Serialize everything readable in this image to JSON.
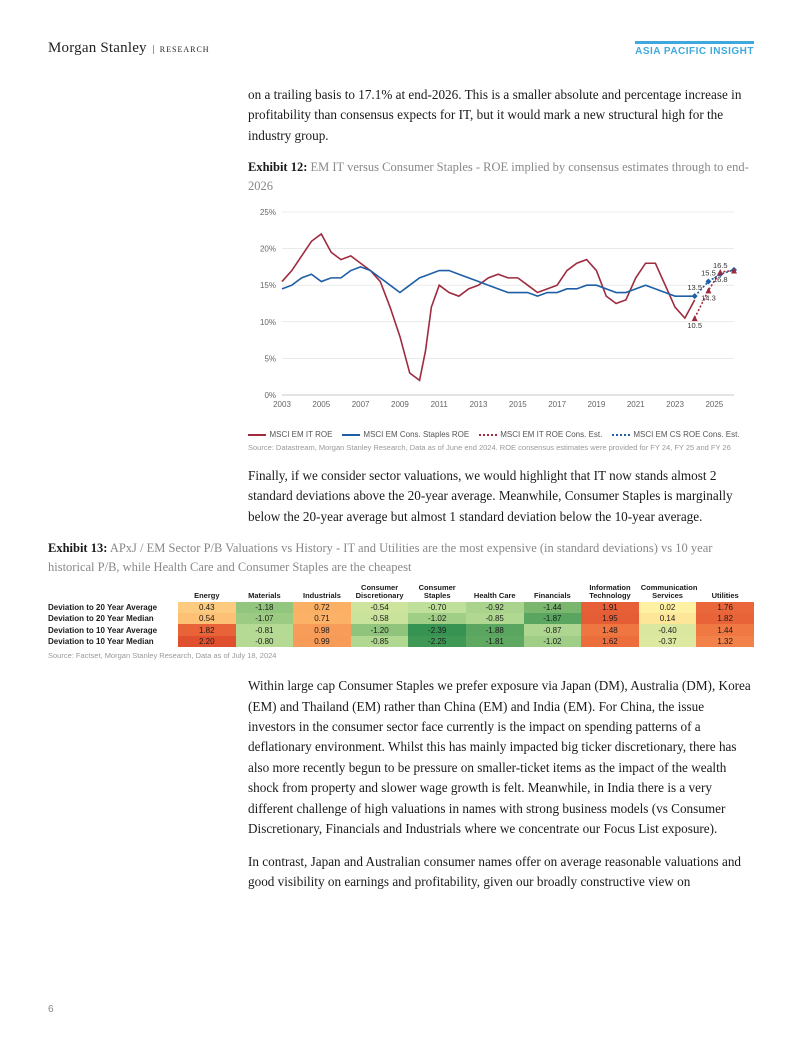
{
  "header": {
    "brand": "Morgan Stanley",
    "research": "RESEARCH",
    "badge": "ASIA PACIFIC INSIGHT"
  },
  "para1": "on a trailing basis to 17.1% at end-2026. This is a smaller absolute and percentage increase in profitability than consensus expects for IT, but it would mark a new structural high for the industry group.",
  "exhibit12": {
    "num": "Exhibit 12:",
    "desc": "EM IT versus Consumer Staples - ROE implied by consensus estimates through to end-2026"
  },
  "chart": {
    "y_ticks": [
      0,
      5,
      10,
      15,
      20,
      25
    ],
    "y_labels": [
      "0%",
      "5%",
      "10%",
      "15%",
      "20%",
      "25%"
    ],
    "x_ticks": [
      2003,
      2005,
      2007,
      2009,
      2011,
      2013,
      2015,
      2017,
      2019,
      2021,
      2023,
      2025
    ],
    "x_min": 2003,
    "x_max": 2026,
    "series": {
      "it": {
        "color": "#9e2b3e",
        "label": "MSCI EM IT ROE",
        "points": [
          [
            2003,
            15.5
          ],
          [
            2003.5,
            17
          ],
          [
            2004,
            19
          ],
          [
            2004.5,
            21
          ],
          [
            2005,
            22
          ],
          [
            2005.5,
            19.5
          ],
          [
            2006,
            18.5
          ],
          [
            2006.5,
            19
          ],
          [
            2007,
            18
          ],
          [
            2007.5,
            17
          ],
          [
            2008,
            15.5
          ],
          [
            2008.5,
            12
          ],
          [
            2009,
            8
          ],
          [
            2009.5,
            3
          ],
          [
            2010,
            2
          ],
          [
            2010.3,
            6
          ],
          [
            2010.6,
            12
          ],
          [
            2011,
            15
          ],
          [
            2011.5,
            14
          ],
          [
            2012,
            13.5
          ],
          [
            2012.5,
            14.5
          ],
          [
            2013,
            15
          ],
          [
            2013.5,
            16
          ],
          [
            2014,
            16.5
          ],
          [
            2014.5,
            16
          ],
          [
            2015,
            16
          ],
          [
            2015.5,
            15
          ],
          [
            2016,
            14
          ],
          [
            2016.5,
            14.5
          ],
          [
            2017,
            15
          ],
          [
            2017.5,
            17
          ],
          [
            2018,
            18
          ],
          [
            2018.5,
            18.5
          ],
          [
            2019,
            17
          ],
          [
            2019.5,
            13.5
          ],
          [
            2020,
            12.5
          ],
          [
            2020.5,
            13
          ],
          [
            2021,
            16
          ],
          [
            2021.5,
            18
          ],
          [
            2022,
            18
          ],
          [
            2022.5,
            15
          ],
          [
            2023,
            12
          ],
          [
            2023.5,
            10.5
          ],
          [
            2024,
            13
          ]
        ]
      },
      "cs": {
        "color": "#1f5fa6",
        "label": "MSCI EM Cons. Staples ROE",
        "points": [
          [
            2003,
            14.5
          ],
          [
            2003.5,
            15
          ],
          [
            2004,
            16
          ],
          [
            2004.5,
            16.5
          ],
          [
            2005,
            15.5
          ],
          [
            2005.5,
            16
          ],
          [
            2006,
            16
          ],
          [
            2006.5,
            17
          ],
          [
            2007,
            17.5
          ],
          [
            2007.5,
            17
          ],
          [
            2008,
            16
          ],
          [
            2008.5,
            15
          ],
          [
            2009,
            14
          ],
          [
            2009.5,
            15
          ],
          [
            2010,
            16
          ],
          [
            2010.5,
            16.5
          ],
          [
            2011,
            17
          ],
          [
            2011.5,
            17
          ],
          [
            2012,
            16.5
          ],
          [
            2012.5,
            16
          ],
          [
            2013,
            15.5
          ],
          [
            2013.5,
            15
          ],
          [
            2014,
            14.5
          ],
          [
            2014.5,
            14
          ],
          [
            2015,
            14
          ],
          [
            2015.5,
            14
          ],
          [
            2016,
            13.5
          ],
          [
            2016.5,
            14
          ],
          [
            2017,
            14
          ],
          [
            2017.5,
            14.5
          ],
          [
            2018,
            14.5
          ],
          [
            2018.5,
            15
          ],
          [
            2019,
            15
          ],
          [
            2019.5,
            14.5
          ],
          [
            2020,
            14
          ],
          [
            2020.5,
            14
          ],
          [
            2021,
            14.5
          ],
          [
            2021.5,
            15
          ],
          [
            2022,
            14.5
          ],
          [
            2022.5,
            14
          ],
          [
            2023,
            13.5
          ],
          [
            2023.5,
            13.5
          ],
          [
            2024,
            13.5
          ]
        ]
      },
      "it_est": {
        "color": "#9e2b3e",
        "label": "MSCI EM IT ROE Cons. Est.",
        "dotted": true,
        "points": [
          [
            2024,
            10.5
          ],
          [
            2024.7,
            14.3
          ],
          [
            2025.3,
            16.8
          ],
          [
            2026,
            17.0
          ]
        ],
        "markers": "triangle",
        "labels": [
          "10.5",
          "14.3",
          "16.8",
          "17.0"
        ]
      },
      "cs_est": {
        "color": "#1f5fa6",
        "label": "MSCI EM CS ROE Cons. Est.",
        "dotted": true,
        "points": [
          [
            2024,
            13.5
          ],
          [
            2024.7,
            15.5
          ],
          [
            2025.3,
            16.5
          ],
          [
            2026,
            17.1
          ]
        ],
        "markers": "diamond",
        "labels": [
          "13.5",
          "15.5",
          "16.5",
          "17.1"
        ]
      }
    }
  },
  "source12": "Source: Datastream, Morgan Stanley Research, Data as of June end 2024. ROE consensus estimates were provided for FY 24, FY 25 and FY 26",
  "para2": "Finally, if we consider sector valuations, we would highlight that IT now stands almost 2 standard deviations above the 20-year average. Meanwhile, Consumer Staples is marginally below the 20-year average but almost 1 standard deviation below the 10-year average.",
  "exhibit13": {
    "num": "Exhibit 13:",
    "desc": "APxJ / EM Sector P/B Valuations vs History - IT and Utilities are the most expensive (in standard deviations) vs 10 year historical P/B, while Health Care and Consumer Staples are the cheapest"
  },
  "table": {
    "columns": [
      "Energy",
      "Materials",
      "Industrials",
      "Consumer Discretionary",
      "Consumer Staples",
      "Health Care",
      "Financials",
      "Information Technology",
      "Communication Services",
      "Utilities"
    ],
    "rows": [
      {
        "label": "Deviation to 20 Year Average",
        "values": [
          0.43,
          -1.18,
          0.72,
          -0.54,
          -0.7,
          -0.92,
          -1.44,
          1.91,
          0.02,
          1.76
        ]
      },
      {
        "label": "Deviation to 20 Year Median",
        "values": [
          0.54,
          -1.07,
          0.71,
          -0.58,
          -1.02,
          -0.85,
          -1.87,
          1.95,
          0.14,
          1.82
        ]
      },
      {
        "label": "Deviation to 10 Year Average",
        "values": [
          1.82,
          -0.81,
          0.98,
          -1.2,
          -2.39,
          -1.88,
          -0.87,
          1.48,
          -0.4,
          1.44
        ]
      },
      {
        "label": "Deviation to 10 Year Median",
        "values": [
          2.2,
          -0.8,
          0.99,
          -0.85,
          -2.25,
          -1.81,
          -1.02,
          1.62,
          -0.37,
          1.32
        ]
      }
    ],
    "palette": {
      "min": -2.5,
      "max": 2.3,
      "stops": [
        [
          -2.5,
          "#2f8f4e"
        ],
        [
          -1.5,
          "#74b36a"
        ],
        [
          -0.7,
          "#bfe09a"
        ],
        [
          0,
          "#fff3a6"
        ],
        [
          0.7,
          "#fbb266"
        ],
        [
          1.5,
          "#ef7440"
        ],
        [
          2.3,
          "#de4b2d"
        ]
      ]
    }
  },
  "source13": "Source: Factset, Morgan Stanley Research, Data as of July 18, 2024",
  "para3": "Within large cap Consumer Staples we prefer exposure via Japan (DM), Australia (DM), Korea (EM) and Thailand (EM) rather than China (EM) and India (EM). For China, the issue investors in the consumer sector face currently is the impact on spending patterns of a deflationary environment. Whilst this has mainly impacted big ticker discretionary, there has also more recently begun to be pressure on smaller-ticket items as the impact of the wealth shock from property and slower wage growth is felt. Meanwhile, in India there is a very different challenge of high valuations in names with strong business models (vs Consumer Discretionary, Financials and Industrials where we concentrate our Focus List exposure).",
  "para4": "In contrast, Japan and Australian consumer names offer on average reasonable valuations and good visibility on earnings and profitability, given our broadly constructive view on",
  "page_num": "6"
}
